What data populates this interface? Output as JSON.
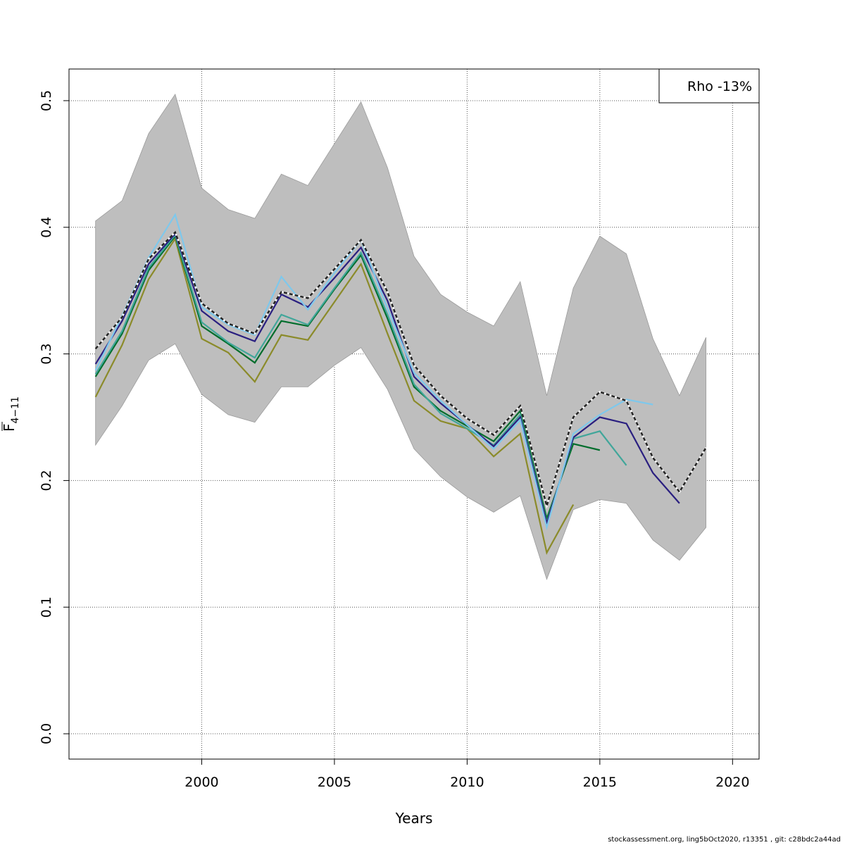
{
  "chart_data": {
    "type": "line",
    "xlabel": "Years",
    "ylabel": "F",
    "ylabel_sub": "4−11",
    "xlim": [
      1995,
      2021
    ],
    "ylim": [
      -0.02,
      0.525
    ],
    "xticks": [
      2000,
      2005,
      2010,
      2015,
      2020
    ],
    "yticks": [
      0.0,
      0.1,
      0.2,
      0.3,
      0.4,
      0.5
    ],
    "xtick_labels": [
      "2000",
      "2005",
      "2010",
      "2015",
      "2020"
    ],
    "ytick_labels": [
      "0.0",
      "0.1",
      "0.2",
      "0.3",
      "0.4",
      "0.5"
    ],
    "grid": true,
    "legend": {
      "position": "top-right",
      "text": "Rho -13%"
    },
    "confidence_band": {
      "color": "#bebebe",
      "x": [
        1996,
        1997,
        1998,
        1999,
        2000,
        2001,
        2002,
        2003,
        2004,
        2005,
        2006,
        2007,
        2008,
        2009,
        2010,
        2011,
        2012,
        2013,
        2014,
        2015,
        2016,
        2017,
        2018,
        2019
      ],
      "upper": [
        0.405,
        0.421,
        0.474,
        0.505,
        0.431,
        0.414,
        0.407,
        0.442,
        0.433,
        0.466,
        0.499,
        0.447,
        0.377,
        0.347,
        0.333,
        0.322,
        0.357,
        0.267,
        0.352,
        0.393,
        0.379,
        0.312,
        0.267,
        0.313
      ],
      "lower": [
        0.228,
        0.259,
        0.295,
        0.308,
        0.268,
        0.252,
        0.246,
        0.274,
        0.274,
        0.291,
        0.305,
        0.272,
        0.225,
        0.203,
        0.187,
        0.175,
        0.188,
        0.122,
        0.177,
        0.185,
        0.182,
        0.153,
        0.137,
        0.163
      ]
    },
    "series": [
      {
        "color": "#8b8b2a",
        "dashed": false,
        "x": [
          1996,
          1997,
          1998,
          1999,
          2000,
          2001,
          2002,
          2003,
          2004,
          2005,
          2006,
          2007,
          2008,
          2009,
          2010,
          2011,
          2012,
          2013,
          2014
        ],
        "values": [
          0.266,
          0.307,
          0.359,
          0.391,
          0.312,
          0.301,
          0.278,
          0.315,
          0.311,
          0.341,
          0.371,
          0.316,
          0.263,
          0.247,
          0.241,
          0.219,
          0.237,
          0.143,
          0.181
        ]
      },
      {
        "color": "#006d2c",
        "dashed": false,
        "x": [
          1996,
          1997,
          1998,
          1999,
          2000,
          2001,
          2002,
          2003,
          2004,
          2005,
          2006,
          2007,
          2008,
          2009,
          2010,
          2011,
          2012,
          2013,
          2014,
          2015
        ],
        "values": [
          0.282,
          0.316,
          0.366,
          0.393,
          0.322,
          0.308,
          0.293,
          0.326,
          0.322,
          0.351,
          0.378,
          0.328,
          0.274,
          0.255,
          0.243,
          0.231,
          0.255,
          0.17,
          0.229,
          0.224
        ]
      },
      {
        "color": "#41a69a",
        "dashed": false,
        "x": [
          1996,
          1997,
          1998,
          1999,
          2000,
          2001,
          2002,
          2003,
          2004,
          2005,
          2006,
          2007,
          2008,
          2009,
          2010,
          2011,
          2012,
          2013,
          2014,
          2015,
          2016
        ],
        "values": [
          0.284,
          0.318,
          0.368,
          0.394,
          0.325,
          0.309,
          0.297,
          0.331,
          0.323,
          0.352,
          0.38,
          0.331,
          0.276,
          0.253,
          0.241,
          0.228,
          0.252,
          0.167,
          0.233,
          0.239,
          0.212
        ]
      },
      {
        "color": "#2a1f80",
        "dashed": false,
        "x": [
          1996,
          1997,
          1998,
          1999,
          2000,
          2001,
          2002,
          2003,
          2004,
          2005,
          2006,
          2007,
          2008,
          2009,
          2010,
          2011,
          2012,
          2013,
          2014,
          2015,
          2016,
          2017,
          2018
        ],
        "values": [
          0.292,
          0.326,
          0.371,
          0.395,
          0.334,
          0.318,
          0.31,
          0.347,
          0.337,
          0.36,
          0.384,
          0.342,
          0.282,
          0.261,
          0.244,
          0.227,
          0.25,
          0.166,
          0.234,
          0.25,
          0.245,
          0.206,
          0.182
        ]
      },
      {
        "color": "#7ec8ec",
        "dashed": false,
        "x": [
          1996,
          1997,
          1998,
          1999,
          2000,
          2001,
          2002,
          2003,
          2004,
          2005,
          2006,
          2007,
          2008,
          2009,
          2010,
          2011,
          2012,
          2013,
          2014,
          2015,
          2016,
          2017
        ],
        "values": [
          0.287,
          0.33,
          0.376,
          0.41,
          0.337,
          0.323,
          0.315,
          0.361,
          0.335,
          0.364,
          0.39,
          0.336,
          0.285,
          0.263,
          0.244,
          0.225,
          0.248,
          0.163,
          0.237,
          0.252,
          0.264,
          0.26
        ]
      },
      {
        "color": "#222222",
        "dashed": true,
        "x": [
          1996,
          1997,
          1998,
          1999,
          2000,
          2001,
          2002,
          2003,
          2004,
          2005,
          2006,
          2007,
          2008,
          2009,
          2010,
          2011,
          2012,
          2013,
          2014,
          2015,
          2016,
          2017,
          2018,
          2019
        ],
        "values": [
          0.304,
          0.329,
          0.375,
          0.396,
          0.34,
          0.324,
          0.316,
          0.349,
          0.344,
          0.367,
          0.39,
          0.349,
          0.291,
          0.267,
          0.249,
          0.236,
          0.259,
          0.18,
          0.25,
          0.27,
          0.263,
          0.218,
          0.191,
          0.226
        ]
      }
    ]
  },
  "footer": "stockassessment.org, ling5bOct2020, r13351 , git: c28bdc2a44ad"
}
